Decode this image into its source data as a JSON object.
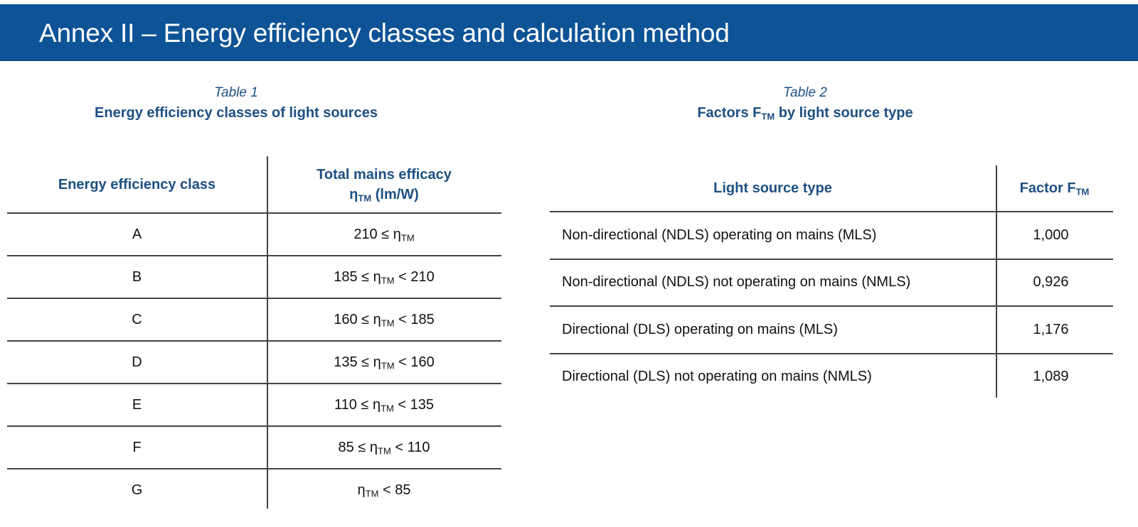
{
  "title": "Annex II – Energy efficiency classes and calculation method",
  "table1": {
    "label": "Table 1",
    "title": "Energy efficiency classes of light sources",
    "col1": "Energy efficiency class",
    "col2_line1": "Total mains efficacy",
    "col2_line2": {
      "pre": "η",
      "sub": "TM",
      "post": " (lm/W)"
    },
    "rows": [
      {
        "cls": "A",
        "pre": "210 ≤ η",
        "sub": "TM",
        "post": ""
      },
      {
        "cls": "B",
        "pre": "185 ≤ η",
        "sub": "TM",
        "post": " < 210"
      },
      {
        "cls": "C",
        "pre": "160 ≤ η",
        "sub": "TM",
        "post": " < 185"
      },
      {
        "cls": "D",
        "pre": "135 ≤ η",
        "sub": "TM",
        "post": " < 160"
      },
      {
        "cls": "E",
        "pre": "110 ≤ η",
        "sub": "TM",
        "post": " < 135"
      },
      {
        "cls": "F",
        "pre": "85 ≤ η",
        "sub": "TM",
        "post": " < 110"
      },
      {
        "cls": "G",
        "pre": "η",
        "sub": "TM",
        "post": " < 85"
      }
    ]
  },
  "table2": {
    "label": "Table 2",
    "title": {
      "pre": "Factors F",
      "sub": "TM",
      "post": " by light source type"
    },
    "col1": "Light source type",
    "col2": {
      "pre": "Factor F",
      "sub": "TM"
    },
    "rows": [
      {
        "type": "Non-directional (NDLS) operating on mains (MLS)",
        "factor": "1,000"
      },
      {
        "type": "Non-directional (NDLS) not operating on mains (NMLS)",
        "factor": "0,926"
      },
      {
        "type": "Directional (DLS) operating on mains (MLS)",
        "factor": "1,176"
      },
      {
        "type": "Directional (DLS) not operating on mains (NMLS)",
        "factor": "1,089"
      }
    ]
  }
}
